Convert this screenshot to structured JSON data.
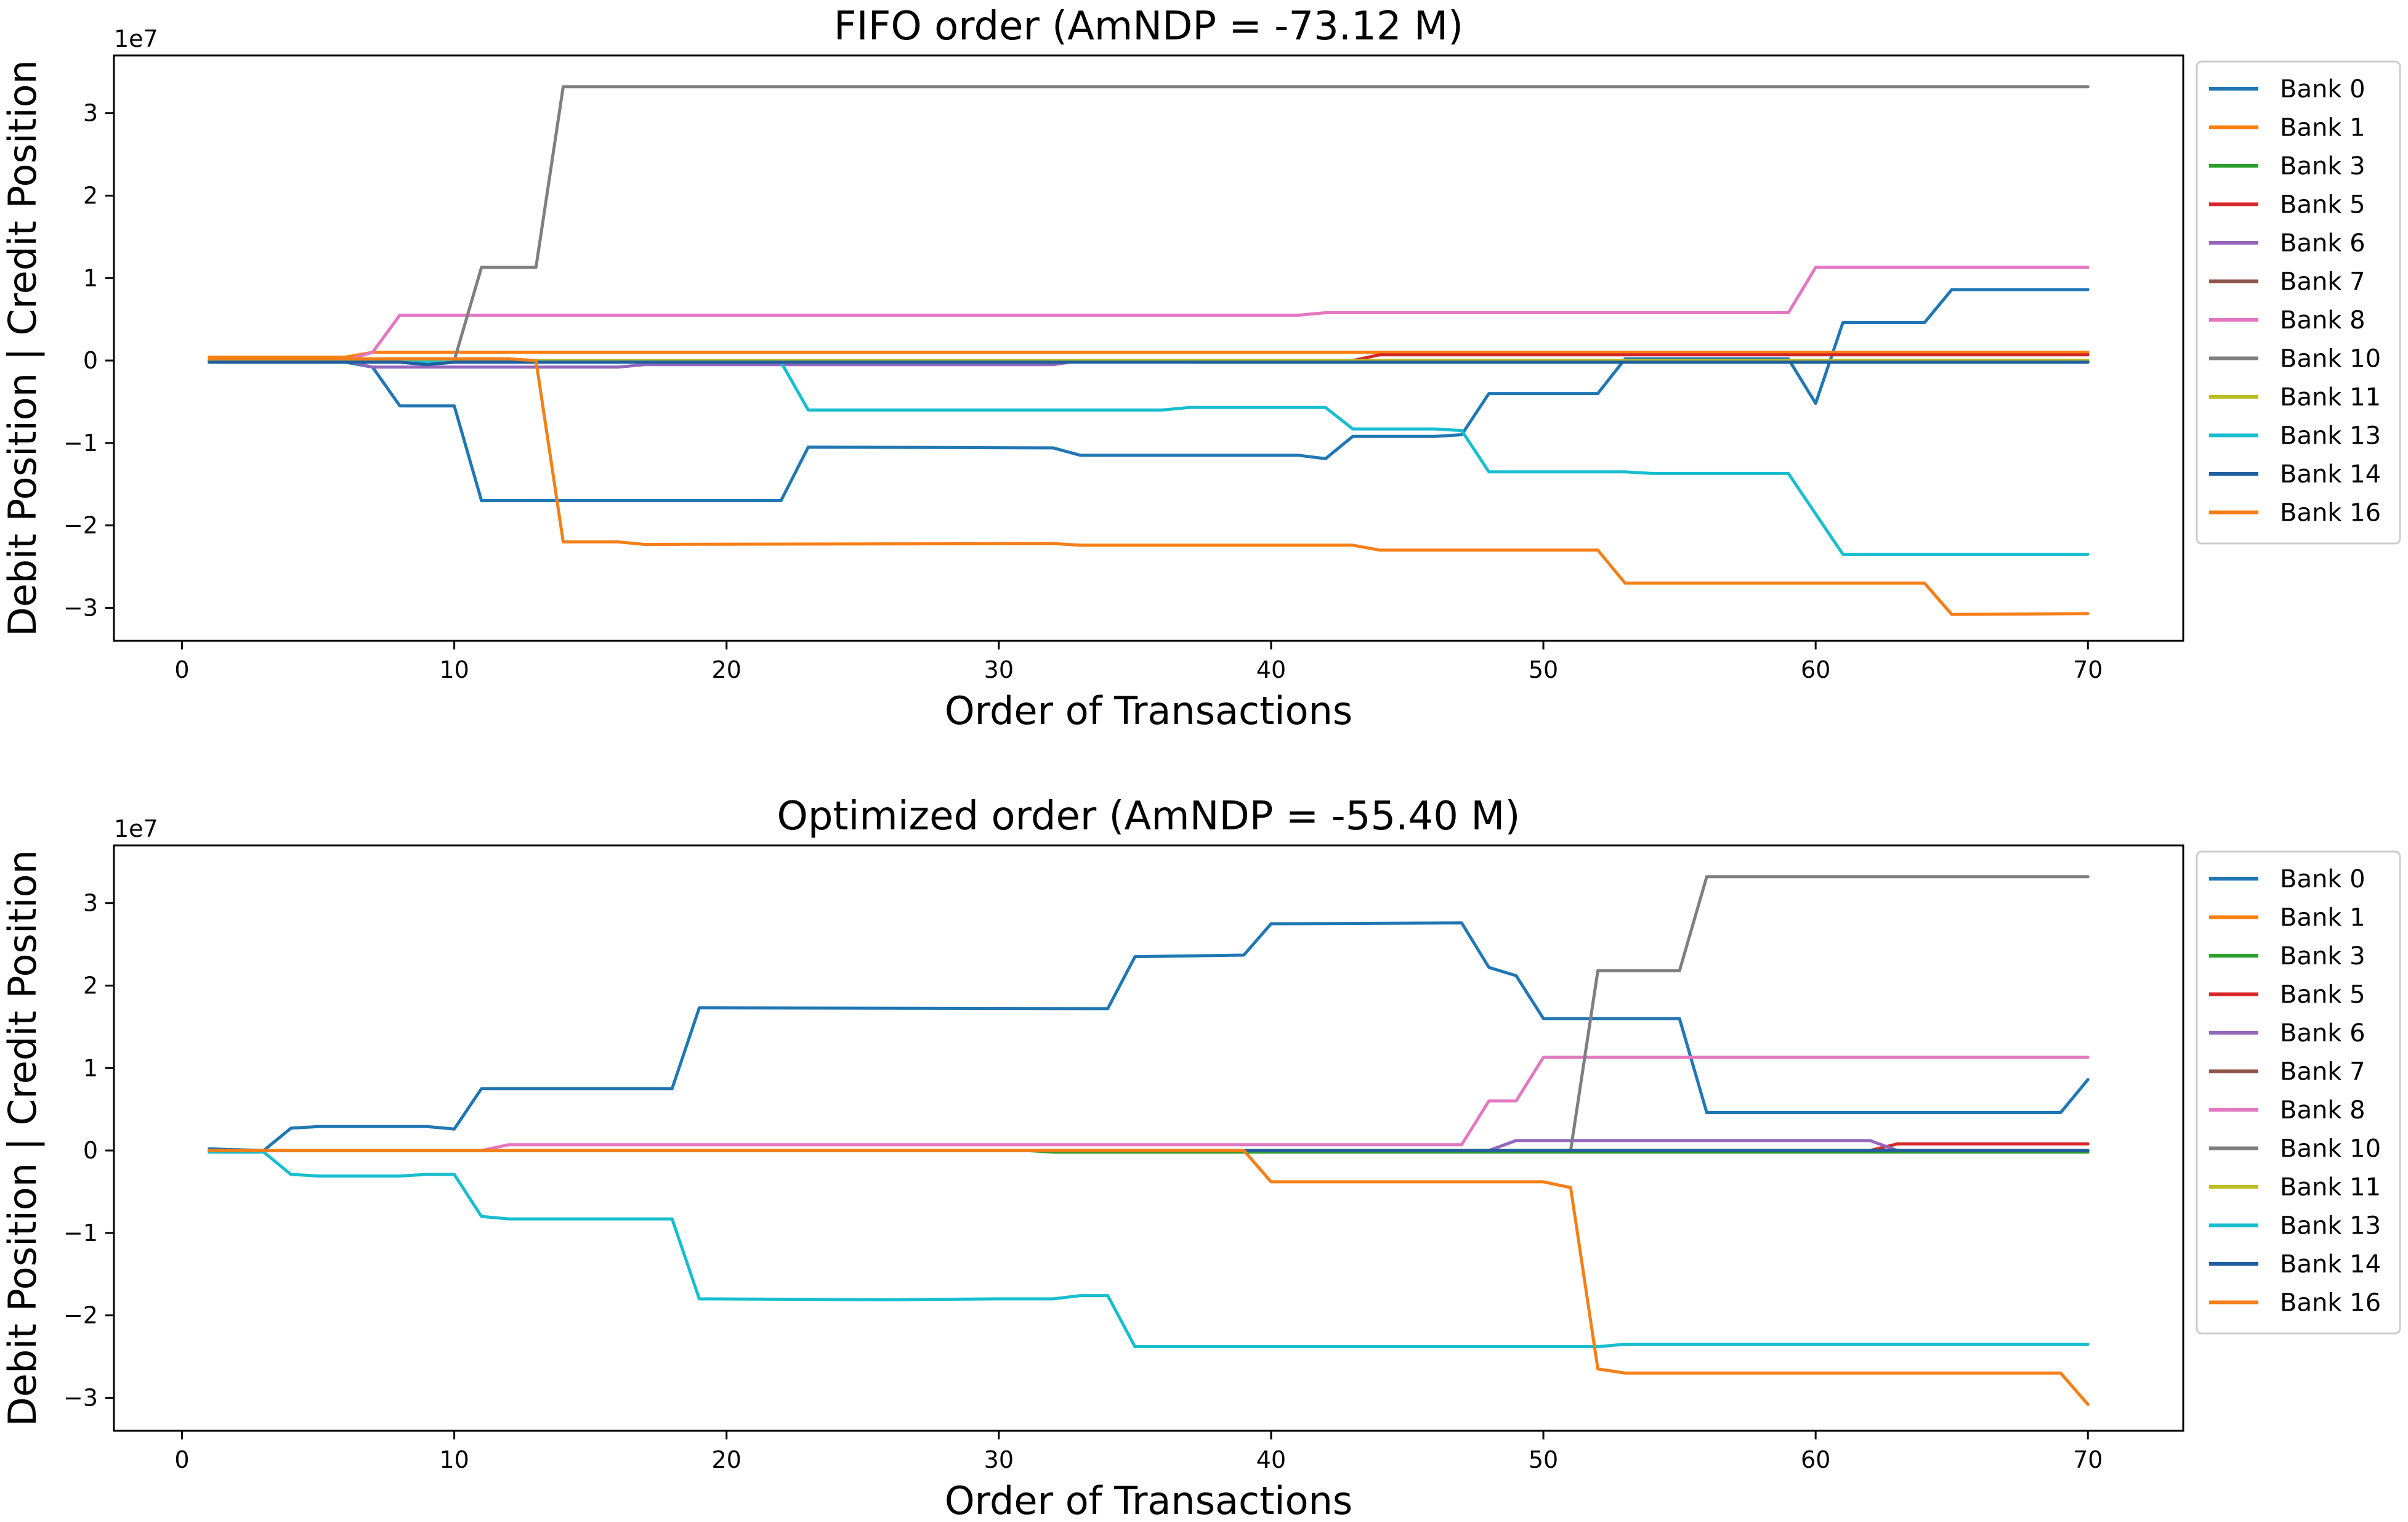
{
  "chart_data": [
    {
      "type": "line",
      "title": "FIFO order (AmNDP = -73.12 M)",
      "xlabel": "Order of Transactions",
      "ylabel": "Debit Position | Credit Position",
      "offset_text": "1e7",
      "xlim": [
        -2.5,
        73.5
      ],
      "ylim": [
        -3.4,
        3.7
      ],
      "xticks": [
        0,
        10,
        20,
        30,
        40,
        50,
        60,
        70
      ],
      "yticks": [
        -3,
        -2,
        -1,
        0,
        1,
        2,
        3
      ],
      "ytick_labels": [
        "−3",
        "−2",
        "−1",
        "0",
        "1",
        "2",
        "3"
      ],
      "legend_position": "right-outside",
      "grid": false,
      "series": [
        {
          "name": "Bank 0",
          "color": "#1f77b4",
          "points": [
            [
              1,
              -0.02
            ],
            [
              6,
              -0.02
            ],
            [
              7,
              -0.08
            ],
            [
              8,
              -0.55
            ],
            [
              10,
              -0.55
            ],
            [
              11,
              -1.7
            ],
            [
              22,
              -1.7
            ],
            [
              23,
              -1.05
            ],
            [
              32,
              -1.06
            ],
            [
              33,
              -1.15
            ],
            [
              41,
              -1.15
            ],
            [
              42,
              -1.19
            ],
            [
              43,
              -0.92
            ],
            [
              46,
              -0.92
            ],
            [
              47,
              -0.9
            ],
            [
              48,
              -0.4
            ],
            [
              52,
              -0.4
            ],
            [
              53,
              0.02
            ],
            [
              59,
              0.02
            ],
            [
              60,
              -0.52
            ],
            [
              61,
              0.46
            ],
            [
              64,
              0.46
            ],
            [
              65,
              0.86
            ],
            [
              70,
              0.86
            ]
          ]
        },
        {
          "name": "Bank 1",
          "color": "#ff7f0e",
          "points": [
            [
              1,
              0.04
            ],
            [
              6,
              0.04
            ],
            [
              7,
              0.1
            ],
            [
              70,
              0.1
            ]
          ]
        },
        {
          "name": "Bank 3",
          "color": "#2ca02c",
          "points": [
            [
              1,
              0.0
            ],
            [
              36,
              0.0
            ],
            [
              37,
              -0.02
            ],
            [
              70,
              -0.02
            ]
          ]
        },
        {
          "name": "Bank 5",
          "color": "#d62728",
          "points": [
            [
              1,
              0.0
            ],
            [
              43,
              0.0
            ],
            [
              44,
              0.07
            ],
            [
              70,
              0.07
            ]
          ]
        },
        {
          "name": "Bank 6",
          "color": "#9467bd",
          "points": [
            [
              1,
              0.0
            ],
            [
              6,
              0.0
            ],
            [
              7,
              -0.08
            ],
            [
              16,
              -0.08
            ],
            [
              17,
              -0.05
            ],
            [
              32,
              -0.05
            ],
            [
              33,
              0.0
            ],
            [
              70,
              0.0
            ]
          ]
        },
        {
          "name": "Bank 7",
          "color": "#8c564b",
          "points": [
            [
              1,
              0.0
            ],
            [
              70,
              0.0
            ]
          ]
        },
        {
          "name": "Bank 8",
          "color": "#e377c2",
          "points": [
            [
              1,
              0.0
            ],
            [
              6,
              0.0
            ],
            [
              7,
              0.1
            ],
            [
              8,
              0.55
            ],
            [
              41,
              0.55
            ],
            [
              42,
              0.58
            ],
            [
              59,
              0.58
            ],
            [
              60,
              1.13
            ],
            [
              70,
              1.13
            ]
          ]
        },
        {
          "name": "Bank 10",
          "color": "#7f7f7f",
          "points": [
            [
              1,
              0.0
            ],
            [
              10,
              0.0
            ],
            [
              11,
              1.13
            ],
            [
              13,
              1.13
            ],
            [
              14,
              3.32
            ],
            [
              70,
              3.32
            ]
          ]
        },
        {
          "name": "Bank 11",
          "color": "#bcbd22",
          "points": [
            [
              1,
              0.0
            ],
            [
              70,
              0.0
            ]
          ]
        },
        {
          "name": "Bank 13",
          "color": "#17becf",
          "points": [
            [
              1,
              -0.02
            ],
            [
              22,
              -0.02
            ],
            [
              23,
              -0.6
            ],
            [
              36,
              -0.6
            ],
            [
              37,
              -0.57
            ],
            [
              42,
              -0.57
            ],
            [
              43,
              -0.83
            ],
            [
              46,
              -0.83
            ],
            [
              47,
              -0.85
            ],
            [
              48,
              -1.35
            ],
            [
              53,
              -1.35
            ],
            [
              54,
              -1.37
            ],
            [
              59,
              -1.37
            ],
            [
              61,
              -2.35
            ],
            [
              70,
              -2.35
            ]
          ]
        },
        {
          "name": "Bank 14",
          "color": "#1f5f9f",
          "points": [
            [
              1,
              -0.02
            ],
            [
              8,
              -0.02
            ],
            [
              9,
              -0.05
            ],
            [
              10,
              -0.02
            ],
            [
              70,
              -0.02
            ]
          ]
        },
        {
          "name": "Bank 16",
          "color": "#f57f17",
          "points": [
            [
              1,
              0.02
            ],
            [
              12,
              0.02
            ],
            [
              13,
              0.0
            ],
            [
              14,
              -2.2
            ],
            [
              16,
              -2.2
            ],
            [
              17,
              -2.23
            ],
            [
              32,
              -2.22
            ],
            [
              33,
              -2.24
            ],
            [
              43,
              -2.24
            ],
            [
              44,
              -2.3
            ],
            [
              52,
              -2.3
            ],
            [
              53,
              -2.7
            ],
            [
              64,
              -2.7
            ],
            [
              65,
              -3.08
            ],
            [
              70,
              -3.07
            ]
          ]
        }
      ]
    },
    {
      "type": "line",
      "title": "Optimized order (AmNDP = -55.40 M)",
      "xlabel": "Order of Transactions",
      "ylabel": "Debit Position | Credit Position",
      "offset_text": "1e7",
      "xlim": [
        -2.5,
        73.5
      ],
      "ylim": [
        -3.4,
        3.7
      ],
      "xticks": [
        0,
        10,
        20,
        30,
        40,
        50,
        60,
        70
      ],
      "yticks": [
        -3,
        -2,
        -1,
        0,
        1,
        2,
        3
      ],
      "ytick_labels": [
        "−3",
        "−2",
        "−1",
        "0",
        "1",
        "2",
        "3"
      ],
      "legend_position": "right-outside",
      "grid": false,
      "series": [
        {
          "name": "Bank 0",
          "color": "#1f77b4",
          "points": [
            [
              1,
              0.02
            ],
            [
              3,
              0.0
            ],
            [
              4,
              0.27
            ],
            [
              5,
              0.29
            ],
            [
              9,
              0.29
            ],
            [
              10,
              0.26
            ],
            [
              11,
              0.75
            ],
            [
              18,
              0.75
            ],
            [
              19,
              1.73
            ],
            [
              34,
              1.72
            ],
            [
              35,
              2.35
            ],
            [
              39,
              2.37
            ],
            [
              40,
              2.75
            ],
            [
              47,
              2.76
            ],
            [
              48,
              2.22
            ],
            [
              49,
              2.12
            ],
            [
              50,
              1.6
            ],
            [
              55,
              1.6
            ],
            [
              56,
              0.46
            ],
            [
              69,
              0.46
            ],
            [
              70,
              0.86
            ]
          ]
        },
        {
          "name": "Bank 1",
          "color": "#ff7f0e",
          "points": [
            [
              1,
              0.0
            ],
            [
              70,
              0.0
            ]
          ]
        },
        {
          "name": "Bank 3",
          "color": "#2ca02c",
          "points": [
            [
              1,
              0.0
            ],
            [
              31,
              0.0
            ],
            [
              32,
              -0.02
            ],
            [
              70,
              -0.02
            ]
          ]
        },
        {
          "name": "Bank 5",
          "color": "#d62728",
          "points": [
            [
              1,
              0.0
            ],
            [
              62,
              0.0
            ],
            [
              63,
              0.08
            ],
            [
              70,
              0.08
            ]
          ]
        },
        {
          "name": "Bank 6",
          "color": "#9467bd",
          "points": [
            [
              1,
              0.0
            ],
            [
              48,
              0.0
            ],
            [
              49,
              0.12
            ],
            [
              62,
              0.12
            ],
            [
              63,
              0.0
            ],
            [
              70,
              0.0
            ]
          ]
        },
        {
          "name": "Bank 7",
          "color": "#8c564b",
          "points": [
            [
              1,
              0.0
            ],
            [
              70,
              0.0
            ]
          ]
        },
        {
          "name": "Bank 8",
          "color": "#e377c2",
          "points": [
            [
              1,
              0.0
            ],
            [
              11,
              0.0
            ],
            [
              12,
              0.07
            ],
            [
              47,
              0.07
            ],
            [
              48,
              0.6
            ],
            [
              49,
              0.6
            ],
            [
              50,
              1.13
            ],
            [
              70,
              1.13
            ]
          ]
        },
        {
          "name": "Bank 10",
          "color": "#7f7f7f",
          "points": [
            [
              1,
              0.0
            ],
            [
              51,
              0.0
            ],
            [
              52,
              2.18
            ],
            [
              55,
              2.18
            ],
            [
              56,
              3.32
            ],
            [
              70,
              3.32
            ]
          ]
        },
        {
          "name": "Bank 11",
          "color": "#bcbd22",
          "points": [
            [
              1,
              0.0
            ],
            [
              70,
              0.0
            ]
          ]
        },
        {
          "name": "Bank 13",
          "color": "#17becf",
          "points": [
            [
              1,
              -0.02
            ],
            [
              3,
              -0.02
            ],
            [
              4,
              -0.29
            ],
            [
              5,
              -0.31
            ],
            [
              8,
              -0.31
            ],
            [
              9,
              -0.29
            ],
            [
              10,
              -0.29
            ],
            [
              11,
              -0.8
            ],
            [
              12,
              -0.83
            ],
            [
              18,
              -0.83
            ],
            [
              19,
              -1.8
            ],
            [
              26,
              -1.81
            ],
            [
              30,
              -1.8
            ],
            [
              32,
              -1.8
            ],
            [
              33,
              -1.76
            ],
            [
              34,
              -1.76
            ],
            [
              35,
              -2.38
            ],
            [
              52,
              -2.38
            ],
            [
              53,
              -2.35
            ],
            [
              70,
              -2.35
            ]
          ]
        },
        {
          "name": "Bank 14",
          "color": "#1f5f9f",
          "points": [
            [
              1,
              0.0
            ],
            [
              70,
              0.0
            ]
          ]
        },
        {
          "name": "Bank 16",
          "color": "#f57f17",
          "points": [
            [
              1,
              0.0
            ],
            [
              39,
              0.0
            ],
            [
              40,
              -0.38
            ],
            [
              50,
              -0.38
            ],
            [
              51,
              -0.45
            ],
            [
              52,
              -2.65
            ],
            [
              53,
              -2.7
            ],
            [
              69,
              -2.7
            ],
            [
              70,
              -3.08
            ]
          ]
        }
      ]
    }
  ]
}
